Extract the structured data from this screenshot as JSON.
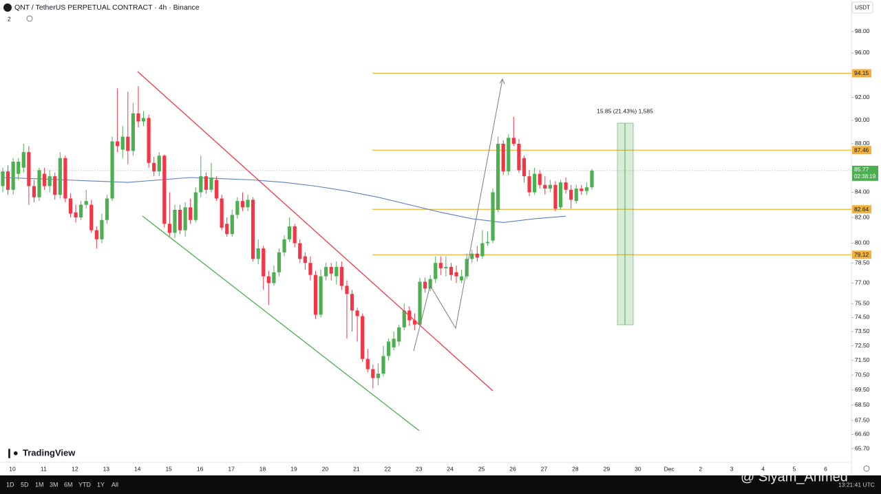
{
  "chart_data": {
    "type": "candlestick",
    "title": "QNT / TetherUS PERPETUAL CONTRACT · 4h · Binance",
    "indicator_count": "2",
    "currency": "USDT",
    "up_color": "#4caf50",
    "down_color": "#f23645",
    "log_scale": true,
    "ylim": [
      64.8,
      101
    ],
    "yticks": [
      {
        "value": 98,
        "label": "98.00"
      },
      {
        "value": 96,
        "label": "96.00"
      },
      {
        "value": 92,
        "label": "92.00"
      },
      {
        "value": 90,
        "label": "90.00"
      },
      {
        "value": 88,
        "label": "88.00"
      },
      {
        "value": 84,
        "label": "84.00"
      },
      {
        "value": 82,
        "label": "82.00"
      },
      {
        "value": 80,
        "label": "80.00"
      },
      {
        "value": 78.5,
        "label": "78.50"
      },
      {
        "value": 77,
        "label": "77.00"
      },
      {
        "value": 75.5,
        "label": "75.50"
      },
      {
        "value": 74.5,
        "label": "74.50"
      },
      {
        "value": 73.5,
        "label": "73.50"
      },
      {
        "value": 72.5,
        "label": "72.50"
      },
      {
        "value": 71.5,
        "label": "71.50"
      },
      {
        "value": 70.5,
        "label": "70.50"
      },
      {
        "value": 69.5,
        "label": "69.50"
      },
      {
        "value": 68.5,
        "label": "68.50"
      },
      {
        "value": 67.5,
        "label": "67.50"
      },
      {
        "value": 66.6,
        "label": "66.60"
      },
      {
        "value": 65.7,
        "label": "65.70"
      }
    ],
    "x_labels": [
      "10",
      "11",
      "12",
      "13",
      "14",
      "15",
      "16",
      "17",
      "18",
      "19",
      "20",
      "21",
      "22",
      "23",
      "24",
      "25",
      "26",
      "27",
      "28",
      "29",
      "30",
      "Dec",
      "2",
      "3",
      "4",
      "5",
      "6"
    ],
    "candles": [
      [
        84.5,
        86.0,
        84.0,
        85.7
      ],
      [
        85.7,
        86.2,
        83.8,
        84.2
      ],
      [
        84.2,
        86.8,
        83.8,
        86.5
      ],
      [
        85.5,
        86.8,
        85.0,
        86.5
      ],
      [
        86.0,
        88.0,
        85.6,
        87.3
      ],
      [
        87.3,
        87.8,
        83.0,
        84.5
      ],
      [
        84.5,
        85.0,
        83.2,
        83.6
      ],
      [
        83.6,
        86.0,
        83.3,
        85.8
      ],
      [
        85.5,
        86.0,
        84.2,
        84.5
      ],
      [
        84.5,
        85.8,
        84.0,
        85.3
      ],
      [
        85.3,
        85.6,
        83.4,
        83.8
      ],
      [
        83.8,
        87.3,
        83.5,
        86.8
      ],
      [
        86.8,
        87.0,
        83.2,
        83.5
      ],
      [
        83.5,
        83.9,
        82.0,
        82.3
      ],
      [
        82.4,
        83.0,
        81.6,
        82.0
      ],
      [
        82.0,
        83.3,
        81.8,
        83.0
      ],
      [
        83.0,
        84.2,
        82.7,
        83.3
      ],
      [
        83.0,
        83.4,
        80.8,
        81.0
      ],
      [
        81.0,
        81.3,
        79.6,
        80.3
      ],
      [
        80.3,
        82.3,
        80.0,
        81.8
      ],
      [
        81.8,
        83.8,
        81.5,
        83.5
      ],
      [
        83.5,
        88.6,
        83.3,
        88.2
      ],
      [
        88.2,
        92.8,
        87.3,
        87.8
      ],
      [
        87.5,
        89.5,
        86.8,
        88.6
      ],
      [
        88.6,
        92.5,
        86.3,
        87.4
      ],
      [
        87.4,
        91.5,
        87.0,
        90.6
      ],
      [
        90.6,
        93.0,
        89.4,
        89.9
      ],
      [
        89.9,
        90.8,
        89.5,
        90.2
      ],
      [
        90.2,
        90.5,
        86.0,
        86.4
      ],
      [
        86.4,
        86.9,
        85.3,
        85.7
      ],
      [
        85.7,
        87.3,
        85.3,
        87.0
      ],
      [
        87.0,
        87.1,
        81.2,
        81.5
      ],
      [
        81.5,
        84.0,
        80.5,
        80.8
      ],
      [
        80.8,
        83.0,
        80.4,
        82.6
      ],
      [
        82.6,
        83.0,
        80.7,
        81.0
      ],
      [
        81.0,
        83.2,
        80.5,
        82.8
      ],
      [
        82.8,
        83.5,
        81.5,
        81.8
      ],
      [
        81.8,
        84.4,
        81.6,
        84.0
      ],
      [
        84.0,
        87.0,
        83.6,
        85.3
      ],
      [
        85.3,
        85.6,
        83.9,
        84.2
      ],
      [
        84.2,
        86.4,
        84.0,
        85.2
      ],
      [
        85.0,
        85.3,
        83.3,
        83.5
      ],
      [
        83.5,
        83.8,
        81.0,
        81.2
      ],
      [
        81.5,
        82.0,
        80.5,
        80.7
      ],
      [
        80.7,
        82.6,
        80.5,
        82.2
      ],
      [
        82.2,
        83.6,
        81.9,
        83.3
      ],
      [
        83.3,
        84.0,
        82.5,
        82.8
      ],
      [
        82.8,
        83.8,
        82.5,
        83.4
      ],
      [
        83.4,
        83.6,
        78.6,
        78.8
      ],
      [
        78.8,
        80.3,
        78.4,
        79.6
      ],
      [
        79.6,
        79.8,
        76.5,
        77.5
      ],
      [
        77.5,
        77.9,
        75.4,
        77.0
      ],
      [
        77.0,
        78.3,
        76.8,
        77.8
      ],
      [
        77.8,
        79.6,
        77.5,
        79.3
      ],
      [
        79.3,
        80.6,
        79.0,
        80.3
      ],
      [
        80.3,
        82.0,
        80.1,
        81.3
      ],
      [
        81.3,
        81.5,
        79.7,
        80.0
      ],
      [
        80.0,
        80.3,
        78.5,
        78.8
      ],
      [
        79.0,
        79.3,
        78.0,
        78.5
      ],
      [
        78.5,
        79.0,
        77.2,
        77.6
      ],
      [
        77.6,
        77.9,
        74.4,
        74.7
      ],
      [
        74.7,
        78.0,
        74.5,
        77.5
      ],
      [
        77.5,
        78.5,
        77.2,
        78.2
      ],
      [
        78.2,
        78.5,
        77.2,
        77.7
      ],
      [
        77.5,
        78.6,
        76.9,
        78.2
      ],
      [
        78.2,
        78.6,
        76.5,
        76.8
      ],
      [
        76.8,
        77.2,
        73.0,
        76.2
      ],
      [
        76.2,
        76.5,
        73.5,
        75.0
      ],
      [
        75.0,
        75.2,
        72.8,
        74.6
      ],
      [
        74.6,
        74.8,
        71.4,
        71.6
      ],
      [
        71.6,
        72.3,
        70.7,
        70.9
      ],
      [
        70.9,
        71.2,
        69.6,
        70.3
      ],
      [
        70.3,
        71.3,
        69.8,
        70.6
      ],
      [
        70.6,
        72.5,
        70.4,
        71.8
      ],
      [
        71.8,
        73.0,
        71.5,
        72.8
      ],
      [
        72.4,
        73.5,
        72.2,
        73.0
      ],
      [
        72.8,
        74.0,
        72.5,
        73.8
      ],
      [
        73.8,
        75.5,
        73.6,
        75.0
      ],
      [
        75.0,
        75.3,
        73.9,
        74.3
      ],
      [
        74.3,
        74.8,
        73.6,
        74.0
      ],
      [
        74.0,
        77.4,
        73.9,
        77.1
      ],
      [
        77.1,
        77.4,
        76.3,
        76.6
      ],
      [
        76.6,
        77.6,
        76.4,
        77.3
      ],
      [
        77.3,
        79.0,
        77.0,
        78.5
      ],
      [
        78.5,
        79.0,
        77.6,
        78.1
      ],
      [
        78.1,
        79.0,
        77.5,
        78.2
      ],
      [
        78.2,
        78.5,
        77.2,
        77.6
      ],
      [
        77.8,
        78.3,
        77.0,
        77.5
      ],
      [
        77.2,
        78.0,
        77.0,
        77.5
      ],
      [
        77.5,
        79.2,
        77.3,
        78.8
      ],
      [
        78.8,
        79.5,
        78.5,
        79.2
      ],
      [
        79.2,
        79.8,
        78.6,
        78.9
      ],
      [
        79.0,
        81.0,
        78.8,
        80.0
      ],
      [
        80.0,
        80.9,
        79.8,
        80.1
      ],
      [
        80.2,
        84.3,
        80.0,
        84.0
      ],
      [
        82.6,
        88.6,
        82.4,
        88.0
      ],
      [
        88.0,
        88.3,
        85.4,
        85.7
      ],
      [
        85.7,
        88.8,
        85.4,
        88.5
      ],
      [
        88.5,
        90.3,
        87.8,
        88.0
      ],
      [
        88.0,
        88.4,
        85.6,
        85.8
      ],
      [
        86.8,
        87.0,
        84.8,
        85.3
      ],
      [
        85.3,
        85.8,
        83.7,
        84.0
      ],
      [
        84.0,
        86.0,
        83.8,
        85.5
      ],
      [
        85.5,
        85.8,
        84.3,
        84.6
      ],
      [
        84.6,
        85.3,
        83.8,
        84.3
      ],
      [
        84.3,
        85.0,
        84.0,
        84.6
      ],
      [
        84.6,
        84.9,
        82.5,
        82.7
      ],
      [
        82.8,
        85.0,
        82.6,
        84.8
      ],
      [
        84.8,
        85.2,
        83.9,
        84.2
      ],
      [
        84.2,
        84.6,
        82.7,
        83.4
      ],
      [
        83.3,
        84.6,
        83.1,
        84.3
      ],
      [
        84.3,
        84.6,
        83.8,
        84.1
      ],
      [
        84.1,
        84.8,
        83.8,
        84.4
      ],
      [
        84.4,
        85.9,
        84.2,
        85.77
      ]
    ],
    "moving_average": {
      "color": "#5b7fbf",
      "values": [
        85.2,
        85.1,
        85.0,
        84.9,
        84.8,
        85.0,
        85.2,
        85.1,
        85.0,
        84.8,
        84.5,
        84.1,
        83.6,
        83.0,
        82.4,
        81.9,
        81.6,
        81.9,
        82.1
      ]
    },
    "levels": [
      94.15,
      87.46,
      82.64,
      79.12
    ],
    "level_color": "#f0b23a",
    "last_price": 85.77,
    "countdown": "02:38:19",
    "measure_label": "15.85 (21.43%) 1,585",
    "brand": "TradingView",
    "ranges": [
      "1D",
      "5D",
      "1M",
      "3M",
      "6M",
      "YTD",
      "1Y",
      "All"
    ],
    "clock": "13:21:41 UTC",
    "watermark": "@ Siyam_Ahmed"
  }
}
